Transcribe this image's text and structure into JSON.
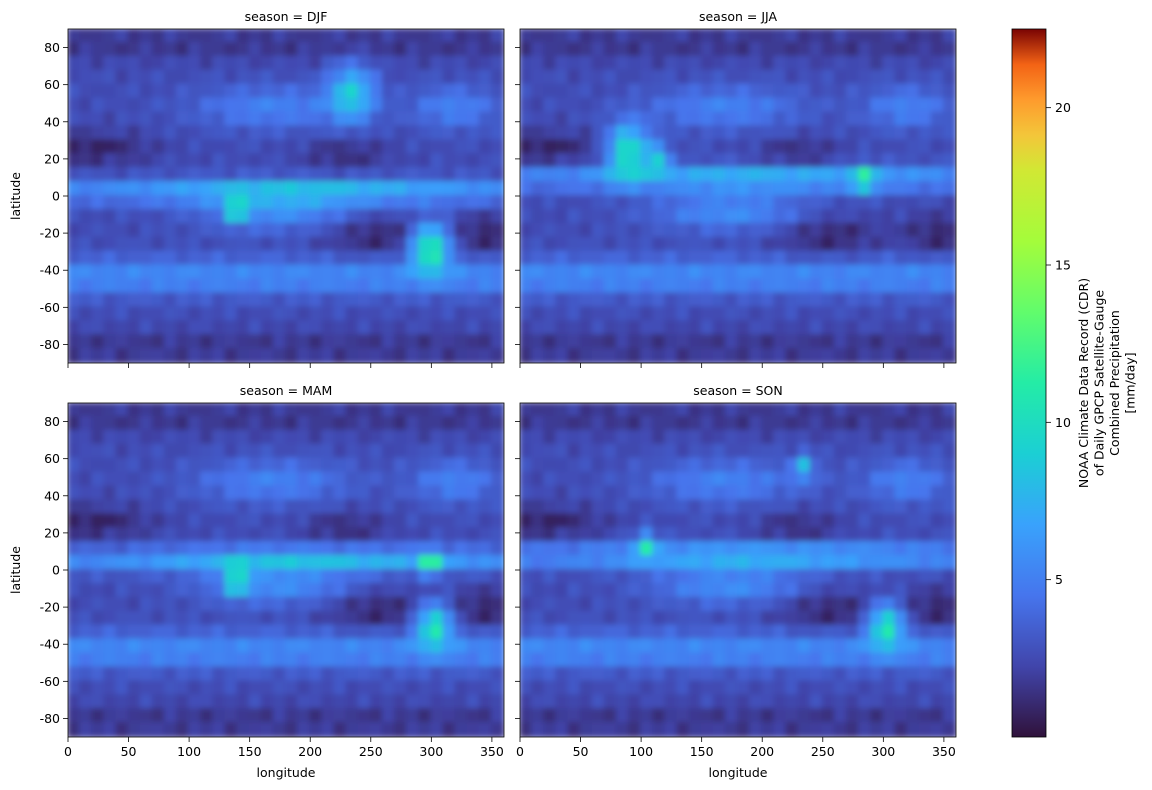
{
  "chart_data": {
    "type": "heatmap",
    "facet_by": "season",
    "panels": [
      {
        "title": "season = DJF",
        "season": "DJF"
      },
      {
        "title": "season = JJA",
        "season": "JJA"
      },
      {
        "title": "season = MAM",
        "season": "MAM"
      },
      {
        "title": "season = SON",
        "season": "SON"
      }
    ],
    "xlabel": "longitude",
    "ylabel": "latitude",
    "xlim": [
      0,
      360
    ],
    "ylim": [
      -90,
      90
    ],
    "xticks": [
      0,
      50,
      100,
      150,
      200,
      250,
      300,
      350
    ],
    "yticks": [
      -80,
      -60,
      -40,
      -20,
      0,
      20,
      40,
      60,
      80
    ],
    "colorbar": {
      "colormap": "turbo",
      "range": [
        0,
        22.5
      ],
      "ticks": [
        5,
        10,
        15,
        20
      ],
      "label_lines": [
        "NOAA Climate Data Record (CDR)",
        "of Daily GPCP Satellite-Gauge",
        "Combined Precipitation",
        "[mm/day]"
      ]
    }
  }
}
